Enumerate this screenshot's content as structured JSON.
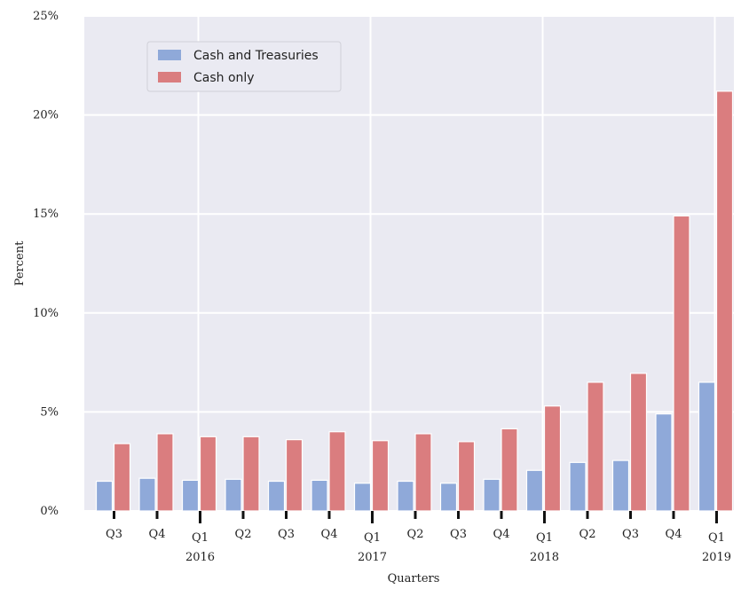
{
  "chart_data": {
    "type": "bar",
    "xlabel": "Quarters",
    "ylabel": "Percent",
    "ylim": [
      0,
      25
    ],
    "yticks": [
      0,
      5,
      10,
      15,
      20,
      25
    ],
    "ytick_labels": [
      "0%",
      "5%",
      "10%",
      "15%",
      "20%",
      "25%"
    ],
    "grid": true,
    "legend_position": "upper-left",
    "categories": [
      "Q3",
      "Q4",
      "Q1",
      "Q2",
      "Q3",
      "Q4",
      "Q1",
      "Q2",
      "Q3",
      "Q4",
      "Q1",
      "Q2",
      "Q3",
      "Q4",
      "Q1"
    ],
    "year_labels": [
      {
        "index": 2,
        "label": "2016"
      },
      {
        "index": 6,
        "label": "2017"
      },
      {
        "index": 10,
        "label": "2018"
      },
      {
        "index": 14,
        "label": "2019"
      }
    ],
    "series": [
      {
        "name": "Cash and Treasuries",
        "color": "#8fa9d9",
        "values": [
          1.5,
          1.65,
          1.55,
          1.6,
          1.5,
          1.55,
          1.4,
          1.5,
          1.4,
          1.6,
          2.05,
          2.45,
          2.55,
          4.9,
          6.5
        ]
      },
      {
        "name": "Cash only",
        "color": "#da7d7f",
        "values": [
          3.4,
          3.9,
          3.75,
          3.75,
          3.6,
          4.0,
          3.55,
          3.9,
          3.5,
          4.15,
          5.3,
          6.5,
          6.95,
          14.9,
          21.2
        ]
      }
    ]
  }
}
